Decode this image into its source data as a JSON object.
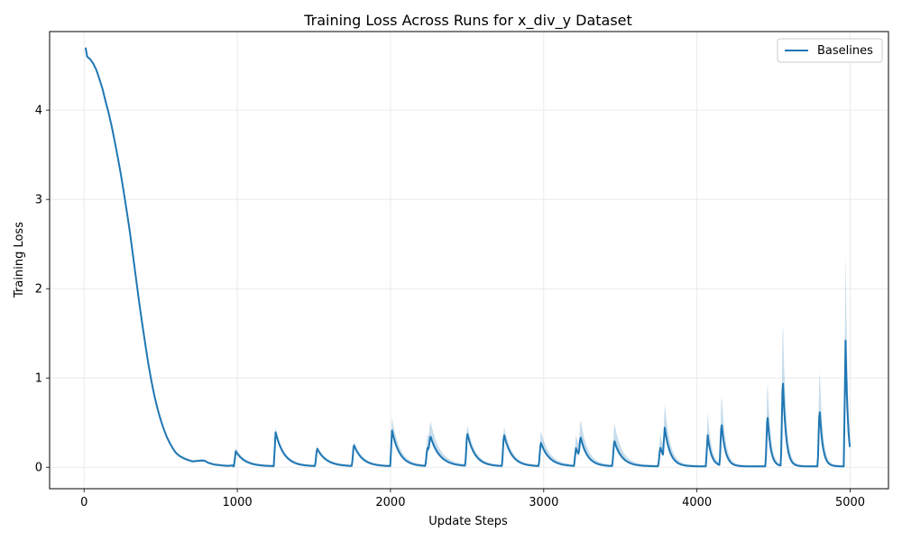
{
  "chart_data": {
    "type": "line",
    "title": "Training Loss Across Runs for x_div_y Dataset",
    "xlabel": "Update Steps",
    "ylabel": "Training Loss",
    "xlim": [
      -225,
      5250
    ],
    "ylim": [
      -0.24,
      4.88
    ],
    "xticks": [
      0,
      1000,
      2000,
      3000,
      4000,
      5000
    ],
    "yticks": [
      0,
      1,
      2,
      3,
      4
    ],
    "grid": true,
    "legend": "top-right",
    "colors": {
      "line": "#1f77b4",
      "band": "#1f77b4"
    },
    "series": [
      {
        "name": "Baselines",
        "smooth": [
          [
            10,
            4.7
          ],
          [
            20,
            4.6
          ],
          [
            40,
            4.57
          ],
          [
            60,
            4.52
          ],
          [
            80,
            4.45
          ],
          [
            100,
            4.35
          ],
          [
            120,
            4.24
          ],
          [
            140,
            4.1
          ],
          [
            160,
            3.97
          ],
          [
            180,
            3.82
          ],
          [
            200,
            3.65
          ],
          [
            220,
            3.47
          ],
          [
            240,
            3.28
          ],
          [
            260,
            3.07
          ],
          [
            280,
            2.85
          ],
          [
            300,
            2.62
          ],
          [
            320,
            2.36
          ],
          [
            340,
            2.1
          ],
          [
            360,
            1.84
          ],
          [
            380,
            1.6
          ],
          [
            400,
            1.37
          ],
          [
            420,
            1.15
          ],
          [
            440,
            0.96
          ],
          [
            460,
            0.79
          ],
          [
            480,
            0.65
          ],
          [
            500,
            0.53
          ],
          [
            520,
            0.43
          ],
          [
            540,
            0.34
          ],
          [
            560,
            0.27
          ],
          [
            580,
            0.21
          ],
          [
            600,
            0.16
          ],
          [
            620,
            0.13
          ],
          [
            650,
            0.1
          ],
          [
            680,
            0.08
          ],
          [
            710,
            0.065
          ],
          [
            740,
            0.07
          ],
          [
            770,
            0.075
          ],
          [
            790,
            0.07
          ],
          [
            810,
            0.05
          ],
          [
            850,
            0.03
          ],
          [
            900,
            0.02
          ],
          [
            940,
            0.015
          ],
          [
            970,
            0.02
          ]
        ],
        "spikes": [
          {
            "x": 990,
            "y": 0.17,
            "band": 0.19,
            "decay": 60
          },
          {
            "x": 1250,
            "y": 0.38,
            "band": 0.42,
            "decay": 55
          },
          {
            "x": 1520,
            "y": 0.2,
            "band": 0.22,
            "decay": 60
          },
          {
            "x": 1760,
            "y": 0.24,
            "band": 0.27,
            "decay": 55
          },
          {
            "x": 2010,
            "y": 0.4,
            "band": 0.53,
            "decay": 50
          },
          {
            "x": 2240,
            "y": 0.21,
            "band": 0.35,
            "decay": 60
          },
          {
            "x": 2260,
            "y": 0.19,
            "band": 0.25,
            "decay": 60
          },
          {
            "x": 2500,
            "y": 0.37,
            "band": 0.45,
            "decay": 50
          },
          {
            "x": 2740,
            "y": 0.36,
            "band": 0.44,
            "decay": 50
          },
          {
            "x": 2980,
            "y": 0.27,
            "band": 0.39,
            "decay": 55
          },
          {
            "x": 3210,
            "y": 0.2,
            "band": 0.33,
            "decay": 45
          },
          {
            "x": 3240,
            "y": 0.23,
            "band": 0.35,
            "decay": 45
          },
          {
            "x": 3460,
            "y": 0.29,
            "band": 0.48,
            "decay": 50
          },
          {
            "x": 3760,
            "y": 0.22,
            "band": 0.36,
            "decay": 35
          },
          {
            "x": 3790,
            "y": 0.34,
            "band": 0.54,
            "decay": 35
          },
          {
            "x": 4070,
            "y": 0.35,
            "band": 0.59,
            "decay": 25
          },
          {
            "x": 4160,
            "y": 0.49,
            "band": 0.82,
            "decay": 25
          },
          {
            "x": 4460,
            "y": 0.6,
            "band": 1.01,
            "decay": 20
          },
          {
            "x": 4560,
            "y": 1.02,
            "band": 1.73,
            "decay": 20
          },
          {
            "x": 4800,
            "y": 0.67,
            "band": 1.14,
            "decay": 20
          },
          {
            "x": 4970,
            "y": 1.41,
            "band": 2.39,
            "decay": 15
          }
        ],
        "x_end": 5000,
        "baseline": 0.01
      }
    ]
  }
}
